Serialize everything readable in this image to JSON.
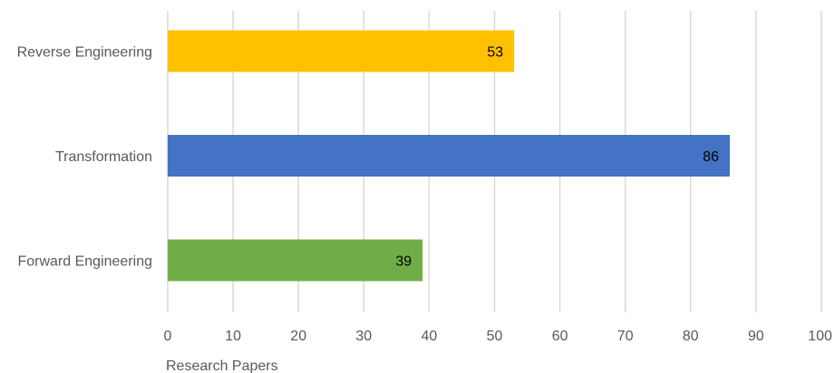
{
  "chart_data": {
    "type": "bar",
    "orientation": "horizontal",
    "categories": [
      "Reverse Engineering",
      "Transformation",
      "Forward Engineering"
    ],
    "values": [
      53,
      86,
      39
    ],
    "colors": [
      "#FFC000",
      "#4472C4",
      "#70AD47"
    ],
    "data_labels": [
      "53",
      "86",
      "39"
    ],
    "xticks": [
      "0",
      "10",
      "20",
      "30",
      "40",
      "50",
      "60",
      "70",
      "80",
      "90",
      "100"
    ],
    "xlim": [
      0,
      100
    ],
    "xlabel": "Research Papers",
    "grid": "vertical",
    "legend": "none"
  }
}
